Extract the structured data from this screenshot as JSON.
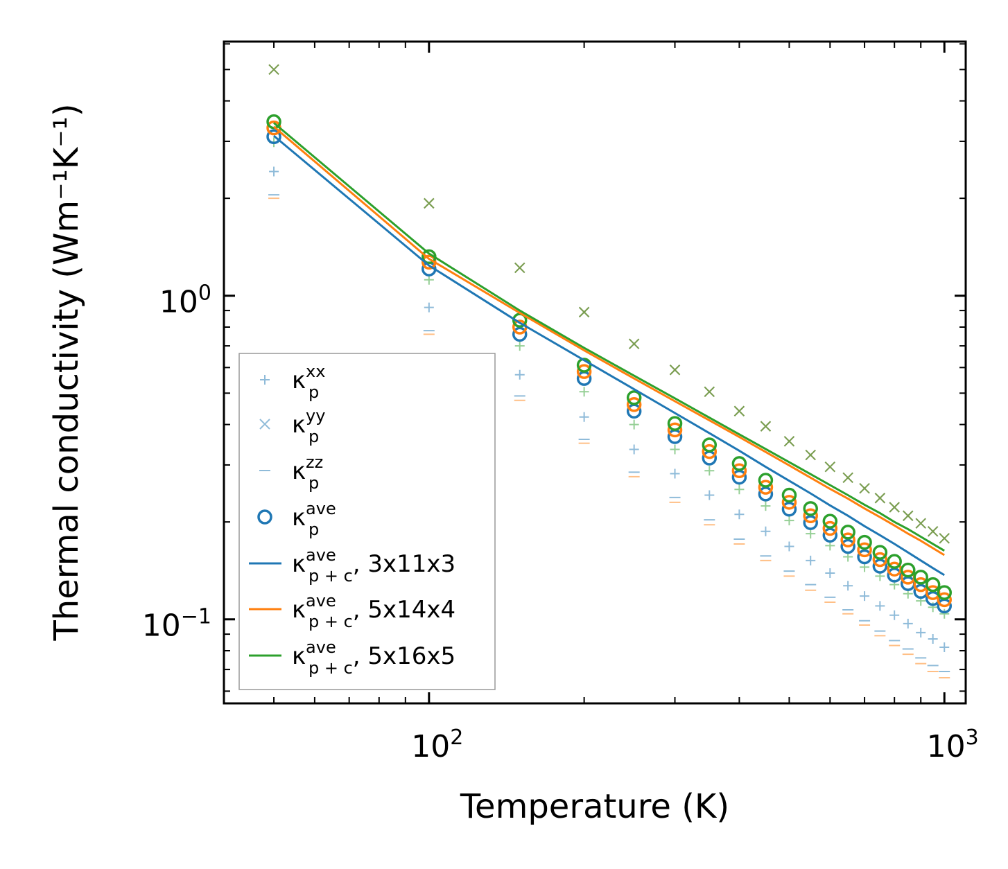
{
  "chart_data": {
    "type": "scatter",
    "xscale": "log",
    "yscale": "log",
    "xlabel": "Temperature (K)",
    "ylabel": "Thermal conductivity (Wm⁻¹K⁻¹)",
    "xlim": [
      40,
      1100
    ],
    "ylim": [
      0.055,
      6.1
    ],
    "x_ticks": [
      {
        "base": "10",
        "exp": "2",
        "value": 100
      },
      {
        "base": "10",
        "exp": "3",
        "value": 1000
      }
    ],
    "y_ticks": [
      {
        "base": "10",
        "exp": "−1",
        "value": 0.1
      },
      {
        "base": "10",
        "exp": "0",
        "value": 1
      }
    ],
    "colors": {
      "c1": "#1f77b4",
      "c2": "#ff7f0e",
      "c3": "#2ca02c",
      "gray": "#7f7f7f"
    },
    "temperatures": [
      50,
      100,
      150,
      200,
      250,
      300,
      350,
      400,
      450,
      500,
      550,
      600,
      650,
      700,
      750,
      800,
      850,
      900,
      950,
      1000
    ],
    "legend": [
      {
        "symbol": "plus",
        "base": "κ",
        "sup": "xx",
        "sub": "p",
        "suffix": ""
      },
      {
        "symbol": "cross",
        "base": "κ",
        "sup": "yy",
        "sub": "p",
        "suffix": ""
      },
      {
        "symbol": "minus",
        "base": "κ",
        "sup": "zz",
        "sub": "p",
        "suffix": ""
      },
      {
        "symbol": "circle",
        "base": "κ",
        "sup": "ave",
        "sub": "p",
        "suffix": ""
      },
      {
        "symbol": "line-c1",
        "base": "κ",
        "sup": "ave",
        "sub": "p + c",
        "suffix": ", 3x11x3"
      },
      {
        "symbol": "line-c2",
        "base": "κ",
        "sup": "ave",
        "sub": "p + c",
        "suffix": ", 5x14x4"
      },
      {
        "symbol": "line-c3",
        "base": "κ",
        "sup": "ave",
        "sub": "p + c",
        "suffix": ", 5x16x5"
      }
    ],
    "series": [
      {
        "name": "kappa_p_xx 3x11x3",
        "marker": "plus",
        "color": "c1",
        "opacity": 0.5,
        "values": [
          2.42,
          0.92,
          0.57,
          0.422,
          0.335,
          0.282,
          0.242,
          0.211,
          0.187,
          0.168,
          0.152,
          0.139,
          0.127,
          0.118,
          0.11,
          0.103,
          0.097,
          0.091,
          0.087,
          0.082
        ]
      },
      {
        "name": "kappa_p_xx 5x16x5",
        "marker": "plus",
        "color": "c3",
        "opacity": 0.5,
        "values": [
          2.98,
          1.12,
          0.7,
          0.505,
          0.4,
          0.335,
          0.288,
          0.252,
          0.224,
          0.202,
          0.184,
          0.169,
          0.156,
          0.145,
          0.136,
          0.128,
          0.12,
          0.114,
          0.109,
          0.104
        ]
      },
      {
        "name": "kappa_p_yy 3x11x3",
        "marker": "cross",
        "color": "c1",
        "opacity": 0.5,
        "values": [
          5.0,
          1.93,
          1.22,
          0.89,
          0.71,
          0.59,
          0.505,
          0.44,
          0.395,
          0.355,
          0.322,
          0.296,
          0.274,
          0.254,
          0.237,
          0.222,
          0.209,
          0.198,
          0.187,
          0.178
        ]
      },
      {
        "name": "kappa_p_yy 5x14x4",
        "marker": "cross",
        "color": "c2",
        "opacity": 0.5,
        "values": [
          5.0,
          1.93,
          1.22,
          0.89,
          0.71,
          0.59,
          0.505,
          0.44,
          0.395,
          0.355,
          0.322,
          0.296,
          0.274,
          0.254,
          0.237,
          0.222,
          0.209,
          0.198,
          0.187,
          0.178
        ]
      },
      {
        "name": "kappa_p_yy 5x16x5",
        "marker": "cross",
        "color": "c3",
        "opacity": 0.5,
        "values": [
          5.0,
          1.93,
          1.22,
          0.89,
          0.71,
          0.59,
          0.505,
          0.44,
          0.395,
          0.355,
          0.322,
          0.296,
          0.274,
          0.254,
          0.237,
          0.222,
          0.209,
          0.198,
          0.187,
          0.178
        ]
      },
      {
        "name": "kappa_p_zz 3x11x3",
        "marker": "minus",
        "color": "c1",
        "opacity": 0.5,
        "values": [
          2.05,
          0.78,
          0.49,
          0.36,
          0.285,
          0.238,
          0.203,
          0.177,
          0.157,
          0.141,
          0.128,
          0.117,
          0.107,
          0.099,
          0.092,
          0.086,
          0.081,
          0.076,
          0.072,
          0.069
        ]
      },
      {
        "name": "kappa_p_zz 5x14x4",
        "marker": "minus",
        "color": "c2",
        "opacity": 0.5,
        "values": [
          2.0,
          0.76,
          0.475,
          0.35,
          0.276,
          0.23,
          0.196,
          0.171,
          0.152,
          0.136,
          0.123,
          0.113,
          0.104,
          0.096,
          0.089,
          0.083,
          0.078,
          0.073,
          0.069,
          0.066
        ]
      },
      {
        "name": "kappa_p_ave 3x11x3",
        "marker": "circle",
        "color": "c1",
        "opacity": 1,
        "values": [
          3.1,
          1.21,
          0.76,
          0.555,
          0.44,
          0.367,
          0.315,
          0.275,
          0.244,
          0.219,
          0.199,
          0.182,
          0.168,
          0.156,
          0.146,
          0.137,
          0.129,
          0.122,
          0.116,
          0.11
        ]
      },
      {
        "name": "kappa_p_ave 5x14x4",
        "marker": "circle",
        "color": "c2",
        "opacity": 1,
        "values": [
          3.3,
          1.27,
          0.8,
          0.583,
          0.461,
          0.385,
          0.33,
          0.288,
          0.256,
          0.23,
          0.209,
          0.191,
          0.176,
          0.164,
          0.153,
          0.143,
          0.135,
          0.128,
          0.121,
          0.115
        ]
      },
      {
        "name": "kappa_p_ave 5x16x5",
        "marker": "circle",
        "color": "c3",
        "opacity": 1,
        "values": [
          3.45,
          1.32,
          0.84,
          0.61,
          0.484,
          0.403,
          0.346,
          0.303,
          0.269,
          0.242,
          0.22,
          0.201,
          0.186,
          0.173,
          0.161,
          0.151,
          0.142,
          0.135,
          0.128,
          0.121
        ]
      },
      {
        "name": "kappa_p+c_ave 3x11x3",
        "marker": "line",
        "color": "c1",
        "opacity": 1,
        "values": [
          3.12,
          1.24,
          0.825,
          0.632,
          0.514,
          0.434,
          0.376,
          0.332,
          0.296,
          0.268,
          0.245,
          0.225,
          0.209,
          0.194,
          0.182,
          0.171,
          0.161,
          0.152,
          0.144,
          0.137
        ]
      },
      {
        "name": "kappa_p+c_ave 5x14x4",
        "marker": "line",
        "color": "c2",
        "opacity": 1,
        "values": [
          3.33,
          1.3,
          0.885,
          0.678,
          0.555,
          0.472,
          0.412,
          0.366,
          0.329,
          0.299,
          0.274,
          0.253,
          0.236,
          0.22,
          0.207,
          0.195,
          0.184,
          0.175,
          0.166,
          0.158
        ]
      },
      {
        "name": "kappa_p+c_ave 5x16x5",
        "marker": "line",
        "color": "c3",
        "opacity": 1,
        "values": [
          3.42,
          1.35,
          0.9,
          0.69,
          0.566,
          0.482,
          0.42,
          0.373,
          0.336,
          0.306,
          0.281,
          0.26,
          0.242,
          0.226,
          0.213,
          0.2,
          0.19,
          0.18,
          0.171,
          0.163
        ]
      }
    ]
  }
}
